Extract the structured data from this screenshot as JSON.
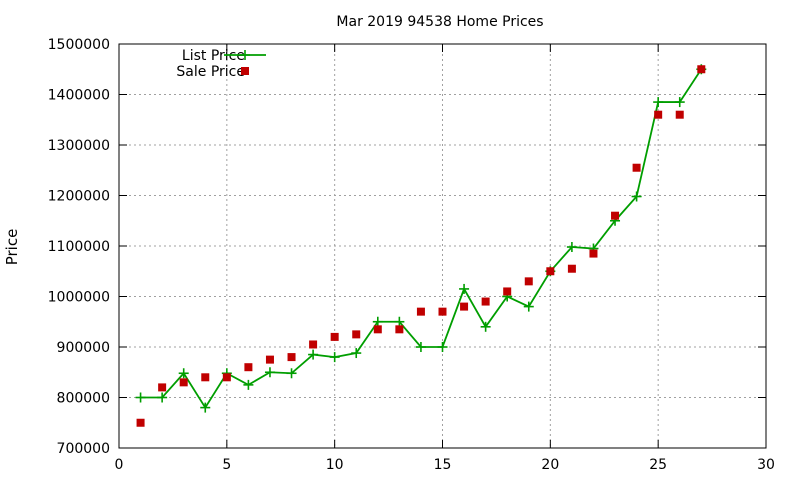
{
  "chart_data": {
    "type": "line",
    "title": "Mar 2019 94538 Home Prices",
    "xlabel": "",
    "ylabel": "Price",
    "xlim": [
      0,
      30
    ],
    "ylim": [
      700000,
      1500000
    ],
    "xticks": [
      0,
      5,
      10,
      15,
      20,
      25,
      30
    ],
    "yticks": [
      700000,
      800000,
      900000,
      1000000,
      1100000,
      1200000,
      1300000,
      1400000,
      1500000
    ],
    "grid": true,
    "legend_position": "top-left",
    "series": [
      {
        "name": "List Price",
        "style": "line-plus",
        "color": "#009e00",
        "x": [
          1,
          2,
          3,
          4,
          5,
          6,
          7,
          8,
          9,
          10,
          11,
          12,
          13,
          14,
          15,
          16,
          17,
          18,
          19,
          20,
          21,
          22,
          23,
          24,
          25,
          26,
          27
        ],
        "y": [
          800000,
          800000,
          848000,
          780000,
          848000,
          825000,
          850000,
          848000,
          885000,
          880000,
          888000,
          950000,
          950000,
          900000,
          900000,
          1015000,
          940000,
          1000000,
          980000,
          1050000,
          1098000,
          1095000,
          1150000,
          1198000,
          1385000,
          1385000,
          1450000
        ]
      },
      {
        "name": "Sale Price",
        "style": "square",
        "color": "#c00000",
        "x": [
          1,
          2,
          3,
          4,
          5,
          6,
          7,
          8,
          9,
          10,
          11,
          12,
          13,
          14,
          15,
          16,
          17,
          18,
          19,
          20,
          21,
          22,
          23,
          24,
          25,
          26,
          27
        ],
        "y": [
          750000,
          820000,
          830000,
          840000,
          840000,
          860000,
          875000,
          880000,
          905000,
          920000,
          925000,
          935000,
          935000,
          970000,
          970000,
          980000,
          990000,
          1010000,
          1030000,
          1050000,
          1055000,
          1085000,
          1160000,
          1255000,
          1360000,
          1360000,
          1450000
        ]
      }
    ]
  }
}
